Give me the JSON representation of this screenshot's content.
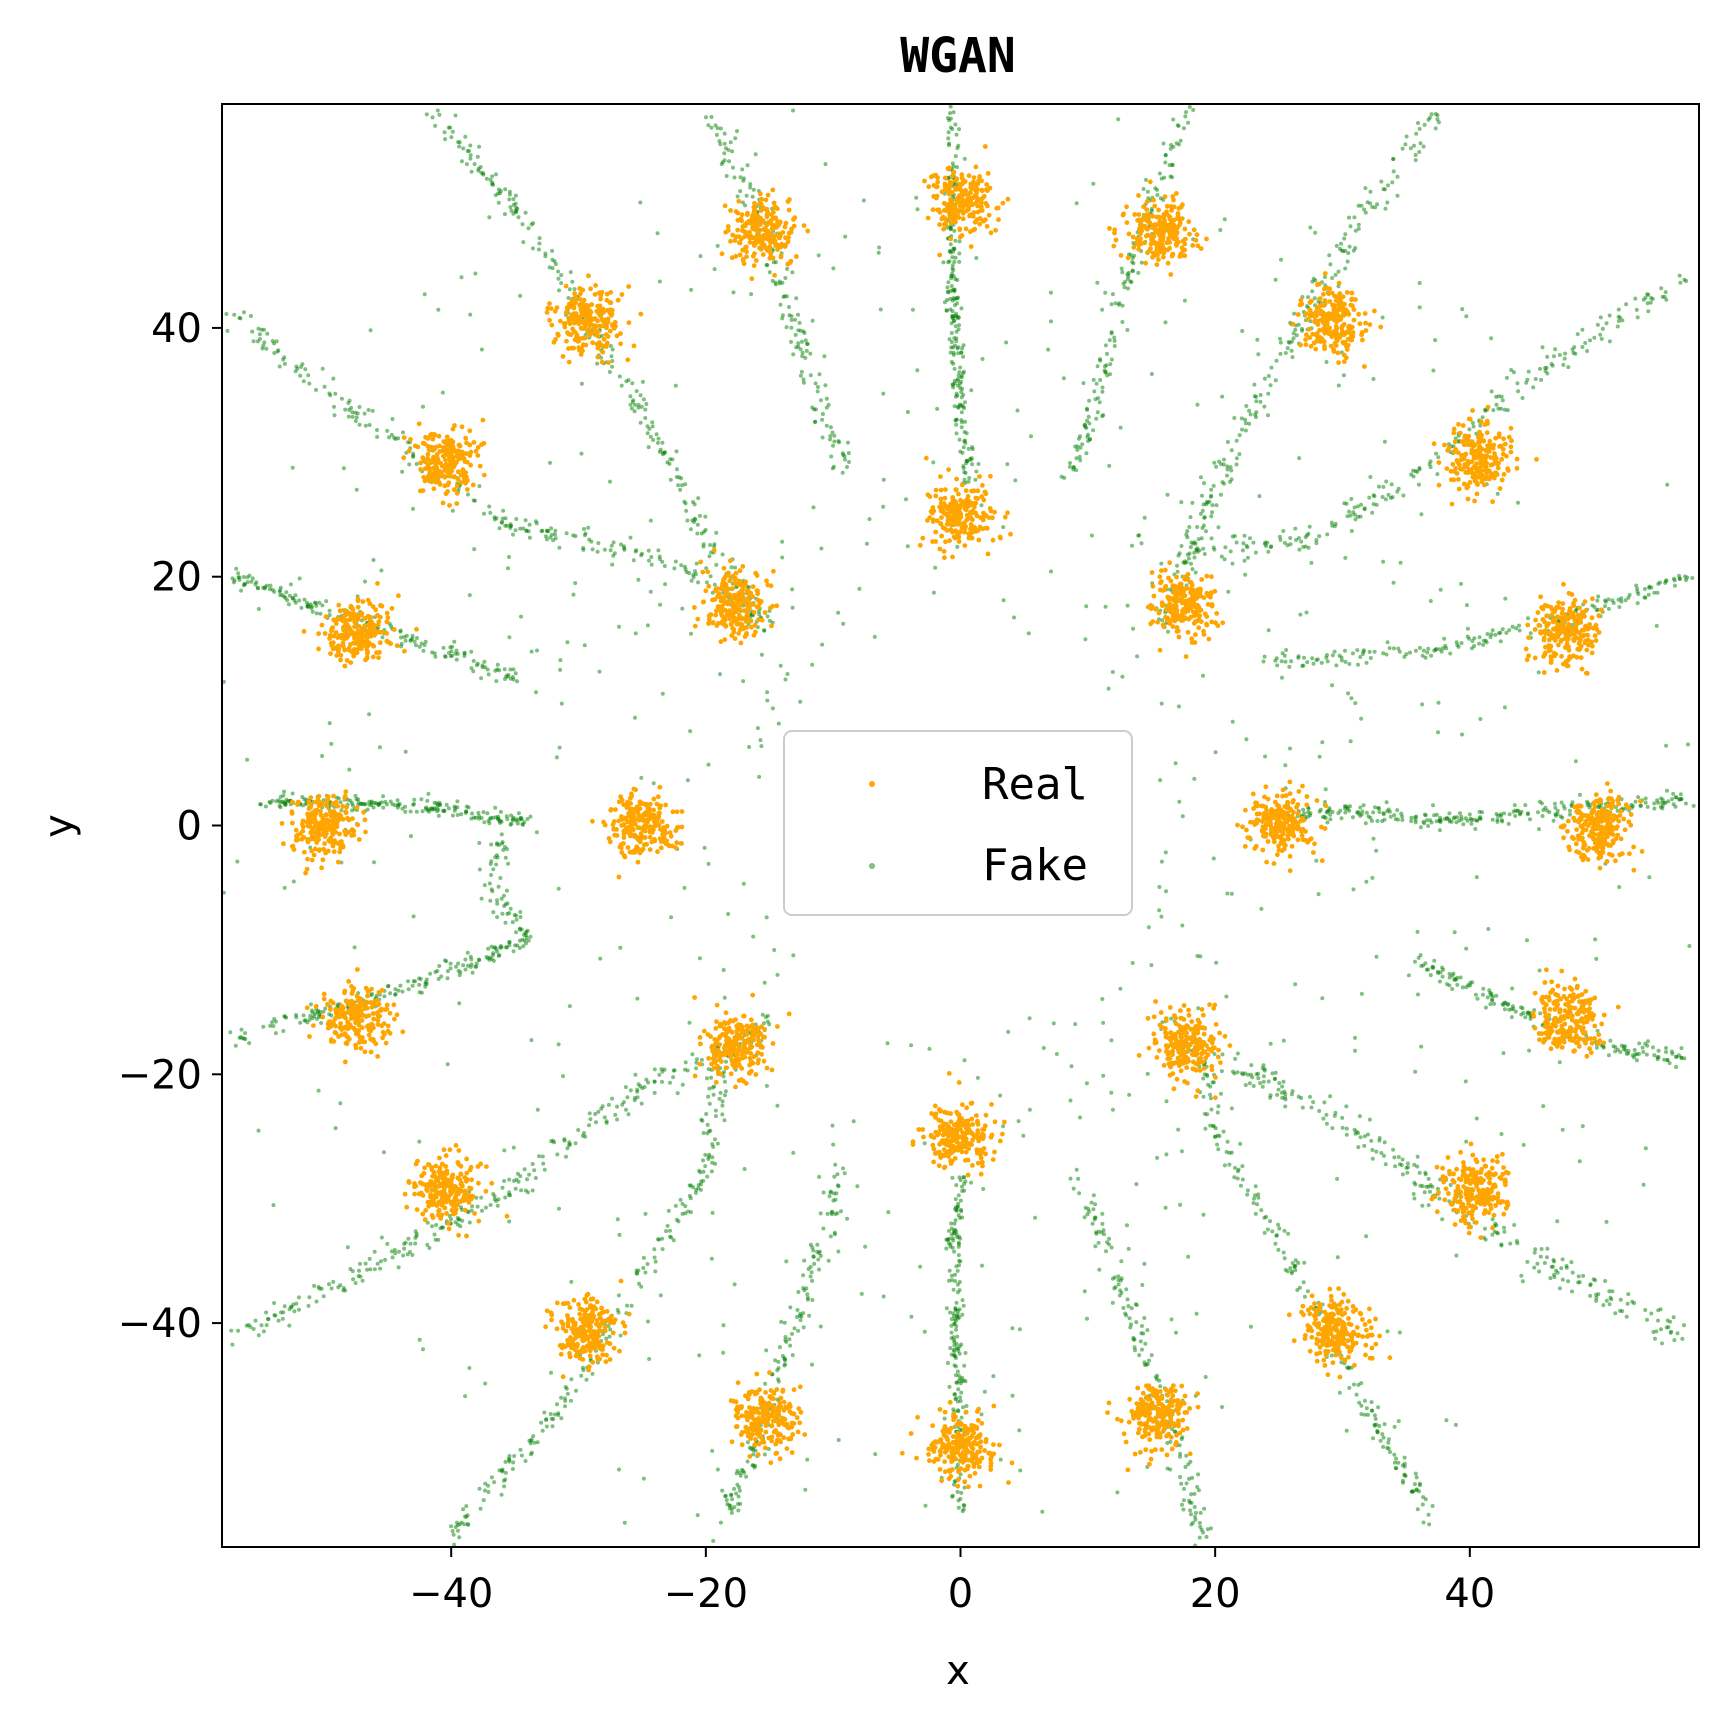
{
  "chart_data": {
    "type": "scatter",
    "title": "WGAN",
    "xlabel": "x",
    "ylabel": "y",
    "xlim": [
      -58,
      58
    ],
    "ylim": [
      -58,
      58
    ],
    "xticks": [
      -40,
      -20,
      0,
      20,
      40
    ],
    "yticks": [
      -40,
      -20,
      0,
      20,
      40
    ],
    "xtick_labels": [
      "−40",
      "−20",
      "0",
      "20",
      "40"
    ],
    "ytick_labels": [
      "−40",
      "−20",
      "0",
      "20",
      "40"
    ],
    "grid": false,
    "legend": {
      "placement": "center"
    },
    "series": [
      {
        "name": "Real",
        "color": "#FFA500",
        "points_per_cluster": 220,
        "spread": 1.3,
        "cluster_centers": [
          [
            0,
            50
          ],
          [
            15.5,
            47.6
          ],
          [
            29.4,
            40.5
          ],
          [
            40.5,
            29.4
          ],
          [
            47.6,
            15.5
          ],
          [
            50,
            0
          ],
          [
            47.6,
            -15.5
          ],
          [
            40.5,
            -29.4
          ],
          [
            29.4,
            -40.5
          ],
          [
            15.5,
            -47.6
          ],
          [
            0,
            -50
          ],
          [
            -15.5,
            -47.6
          ],
          [
            -29.4,
            -40.5
          ],
          [
            -40.5,
            -29.4
          ],
          [
            -47.6,
            -15.5
          ],
          [
            -50,
            0
          ],
          [
            -47.6,
            15.5
          ],
          [
            -40.5,
            29.4
          ],
          [
            -29.4,
            40.5
          ],
          [
            -15.5,
            47.6
          ],
          [
            0,
            25
          ],
          [
            17.7,
            17.7
          ],
          [
            25,
            0
          ],
          [
            17.7,
            -17.7
          ],
          [
            0,
            -25
          ],
          [
            -17.7,
            -17.7
          ],
          [
            -25,
            0
          ],
          [
            -17.7,
            17.7
          ]
        ]
      },
      {
        "name": "Fake",
        "color": "#008000",
        "opacity": 0.5,
        "curves": [
          {
            "points": [
              [
                0,
                33
              ],
              [
                -0.5,
                40
              ],
              [
                -0.8,
                48
              ],
              [
                -0.5,
                58
              ]
            ],
            "n": 200,
            "spread": 0.5
          },
          {
            "points": [
              [
                0,
                33
              ],
              [
                0.5,
                30
              ],
              [
                0.5,
                27
              ]
            ],
            "n": 40,
            "spread": 0.6
          },
          {
            "points": [
              [
                9,
                28
              ],
              [
                12,
                40
              ],
              [
                15,
                50
              ],
              [
                18,
                58
              ]
            ],
            "n": 160,
            "spread": 0.7
          },
          {
            "points": [
              [
                16,
                16
              ],
              [
                19,
                25
              ],
              [
                25,
                37
              ],
              [
                32,
                50
              ],
              [
                38,
                58
              ]
            ],
            "n": 240,
            "spread": 0.8
          },
          {
            "points": [
              [
                18,
                22
              ],
              [
                27,
                23
              ],
              [
                36,
                28
              ],
              [
                46,
                37
              ],
              [
                57,
                44
              ]
            ],
            "n": 220,
            "spread": 0.8
          },
          {
            "points": [
              [
                24,
                13
              ],
              [
                36,
                14
              ],
              [
                46,
                16
              ],
              [
                57,
                20
              ]
            ],
            "n": 180,
            "spread": 0.6
          },
          {
            "points": [
              [
                26,
                1
              ],
              [
                32,
                1
              ],
              [
                38,
                0.3
              ],
              [
                44,
                1
              ],
              [
                52,
                1.5
              ],
              [
                57,
                2
              ]
            ],
            "n": 260,
            "spread": 0.6
          },
          {
            "points": [
              [
                36,
                -11
              ],
              [
                44,
                -15
              ],
              [
                51,
                -18
              ],
              [
                57,
                -18.5
              ]
            ],
            "n": 160,
            "spread": 0.6
          },
          {
            "points": [
              [
                21,
                -19
              ],
              [
                30,
                -24
              ],
              [
                42,
                -33
              ],
              [
                57,
                -41
              ]
            ],
            "n": 240,
            "spread": 1.0
          },
          {
            "points": [
              [
                16,
                -15
              ],
              [
                19,
                -19
              ],
              [
                20,
                -25
              ],
              [
                25,
                -33
              ],
              [
                31,
                -45
              ],
              [
                37,
                -56
              ]
            ],
            "n": 220,
            "spread": 0.6
          },
          {
            "points": [
              [
                9,
                -28
              ],
              [
                13,
                -38
              ],
              [
                17,
                -50
              ],
              [
                19,
                -57
              ]
            ],
            "n": 160,
            "spread": 0.7
          },
          {
            "points": [
              [
                0,
                -28
              ],
              [
                -0.5,
                -33
              ],
              [
                -0.3,
                -42
              ],
              [
                0,
                -51
              ],
              [
                0,
                -55
              ]
            ],
            "n": 200,
            "spread": 0.5
          },
          {
            "points": [
              [
                -9,
                -27
              ],
              [
                -12,
                -37
              ],
              [
                -15,
                -47
              ],
              [
                -19,
                -57
              ]
            ],
            "n": 160,
            "spread": 0.7
          },
          {
            "points": [
              [
                -15,
                -15
              ],
              [
                -19,
                -20
              ],
              [
                -20,
                -28
              ],
              [
                -25,
                -36
              ],
              [
                -31,
                -46
              ],
              [
                -40,
                -57
              ]
            ],
            "n": 240,
            "spread": 0.7
          },
          {
            "points": [
              [
                -16,
                -17
              ],
              [
                -25,
                -21
              ],
              [
                -35,
                -29
              ],
              [
                -47,
                -36
              ],
              [
                -57,
                -41
              ]
            ],
            "n": 240,
            "spread": 0.8
          },
          {
            "points": [
              [
                -34,
                -9
              ],
              [
                -43,
                -13
              ],
              [
                -57,
                -17
              ]
            ],
            "n": 180,
            "spread": 0.6
          },
          {
            "points": [
              [
                -34,
                0.3
              ],
              [
                -40,
                1.3
              ],
              [
                -47,
                1.8
              ],
              [
                -55,
                2
              ]
            ],
            "n": 200,
            "spread": 0.5
          },
          {
            "points": [
              [
                -36,
                -1
              ],
              [
                -37,
                -5
              ],
              [
                -34,
                -9
              ]
            ],
            "n": 60,
            "spread": 0.8
          },
          {
            "points": [
              [
                -35,
                12
              ],
              [
                -46,
                16
              ],
              [
                -57,
                20
              ]
            ],
            "n": 180,
            "spread": 0.6
          },
          {
            "points": [
              [
                -15,
                16
              ],
              [
                -22,
                21
              ],
              [
                -35,
                24
              ],
              [
                -46,
                32
              ],
              [
                -57,
                41
              ]
            ],
            "n": 240,
            "spread": 0.8
          },
          {
            "points": [
              [
                -15,
                16
              ],
              [
                -20,
                23
              ],
              [
                -26,
                35
              ],
              [
                -34,
                48
              ],
              [
                -41,
                57
              ]
            ],
            "n": 240,
            "spread": 0.7
          },
          {
            "points": [
              [
                -9,
                28
              ],
              [
                -13,
                40
              ],
              [
                -16,
                50
              ],
              [
                -20,
                57
              ]
            ],
            "n": 160,
            "spread": 0.8
          }
        ],
        "scatter_noise": {
          "n": 650,
          "r_min": 16,
          "r_max": 62
        }
      }
    ]
  }
}
